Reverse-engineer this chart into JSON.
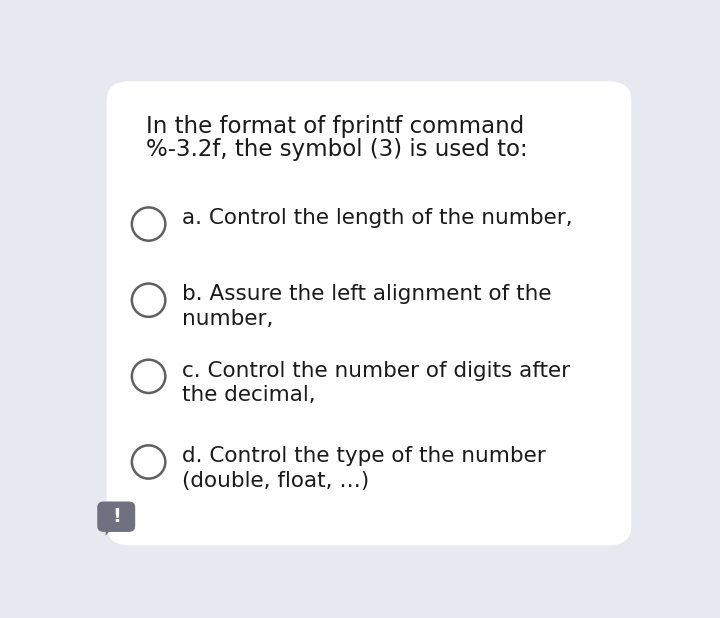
{
  "background_color": "#e8e8f0",
  "card_color": "#ffffff",
  "title_line1": "In the format of fprintf command",
  "title_line2": "%-3.2f, the symbol (3) is used to:",
  "option_texts_line1": [
    "a. Control the length of the number,",
    "b. Assure the left alignment of the",
    "c. Control the number of digits after",
    "d. Control the type of the number"
  ],
  "option_texts_line2": [
    "",
    "number,",
    "the decimal,",
    "(double, float, …)"
  ],
  "circle_color": "#606060",
  "circle_linewidth": 1.8,
  "text_color": "#1a1a1a",
  "title_fontsize": 16.5,
  "option_fontsize": 15.5,
  "exclamation_color": "#707080",
  "exclamation_text": "!"
}
